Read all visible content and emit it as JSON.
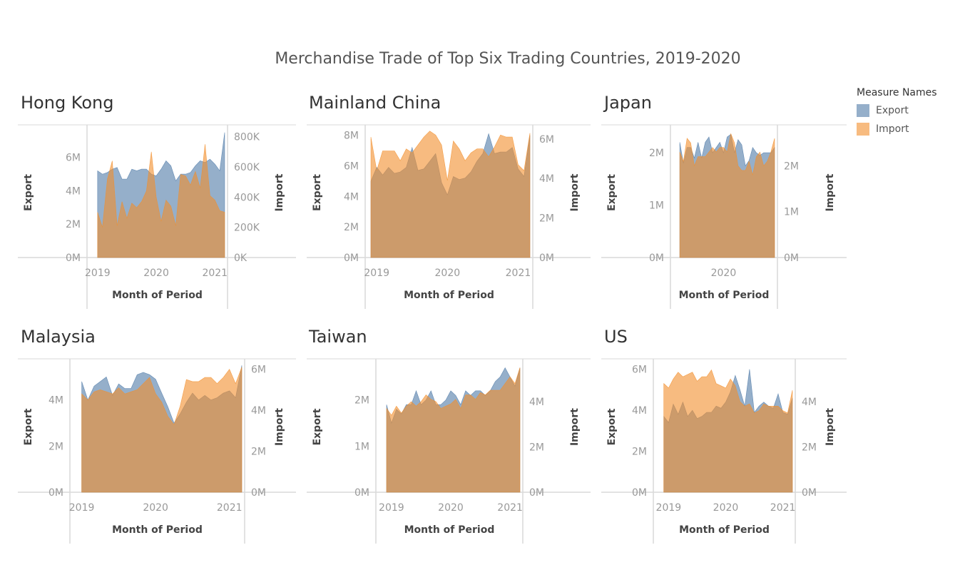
{
  "title": "Merchandise Trade of Top Six Trading Countries, 2019-2020",
  "legend": {
    "title": "Measure Names",
    "items": [
      {
        "label": "Export",
        "color": "#4e79a7"
      },
      {
        "label": "Import",
        "color": "#f28e2b"
      }
    ]
  },
  "colors": {
    "export": "#4e79a7",
    "import": "#f28e2b",
    "overlap": "#c49a6c"
  },
  "chart_data": [
    {
      "type": "area",
      "title": "Hong Kong",
      "xlabel": "Month of Period",
      "ylabel": "Export",
      "ylabel_right": "Import",
      "xlim": [
        2018.917,
        2021.167
      ],
      "ylim": [
        0,
        7700000
      ],
      "ylim_right": [
        0,
        850000
      ],
      "x_ticks": [
        {
          "v": 2019,
          "label": "2019"
        },
        {
          "v": 2020,
          "label": "2020"
        },
        {
          "v": 2021,
          "label": "2021"
        }
      ],
      "y_ticks": [
        {
          "v": 0,
          "label": "0M"
        },
        {
          "v": 2000000,
          "label": "2M"
        },
        {
          "v": 4000000,
          "label": "4M"
        },
        {
          "v": 6000000,
          "label": "6M"
        }
      ],
      "y_ticks_right": [
        {
          "v": 0,
          "label": "0K"
        },
        {
          "v": 200000,
          "label": "200K"
        },
        {
          "v": 400000,
          "label": "400K"
        },
        {
          "v": 600000,
          "label": "600K"
        },
        {
          "v": 800000,
          "label": "800K"
        }
      ],
      "x": [
        2019.0,
        2019.083,
        2019.167,
        2019.25,
        2019.333,
        2019.417,
        2019.5,
        2019.583,
        2019.667,
        2019.75,
        2019.833,
        2019.917,
        2020.0,
        2020.083,
        2020.167,
        2020.25,
        2020.333,
        2020.417,
        2020.5,
        2020.583,
        2020.667,
        2020.75,
        2020.833,
        2020.917,
        2021.0,
        2021.083,
        2021.167
      ],
      "series": [
        {
          "name": "Export",
          "values": [
            5200000,
            5000000,
            5100000,
            5300000,
            5400000,
            4700000,
            4700000,
            5300000,
            5200000,
            5300000,
            5300000,
            5000000,
            4900000,
            5300000,
            5800000,
            5500000,
            4600000,
            5000000,
            5000000,
            5100000,
            5500000,
            5800000,
            5700000,
            5900000,
            5600000,
            5200000,
            7500000
          ]
        },
        {
          "name": "Import",
          "values": [
            300000,
            200000,
            520000,
            640000,
            210000,
            370000,
            260000,
            360000,
            330000,
            370000,
            440000,
            700000,
            400000,
            240000,
            380000,
            340000,
            210000,
            550000,
            540000,
            480000,
            570000,
            460000,
            750000,
            410000,
            380000,
            310000,
            300000
          ]
        }
      ]
    },
    {
      "type": "area",
      "title": "Mainland China",
      "xlabel": "Month of Period",
      "ylabel": "Export",
      "ylabel_right": "Import",
      "xlim": [
        2018.917,
        2021.167
      ],
      "ylim": [
        0,
        8400000
      ],
      "ylim_right": [
        0,
        6500000
      ],
      "x_ticks": [
        {
          "v": 2019,
          "label": "2019"
        },
        {
          "v": 2020,
          "label": "2020"
        },
        {
          "v": 2021,
          "label": "2021"
        }
      ],
      "y_ticks": [
        {
          "v": 0,
          "label": "0M"
        },
        {
          "v": 2000000,
          "label": "2M"
        },
        {
          "v": 4000000,
          "label": "4M"
        },
        {
          "v": 6000000,
          "label": "6M"
        },
        {
          "v": 8000000,
          "label": "8M"
        }
      ],
      "y_ticks_right": [
        {
          "v": 0,
          "label": "0M"
        },
        {
          "v": 2000000,
          "label": "2M"
        },
        {
          "v": 4000000,
          "label": "4M"
        },
        {
          "v": 6000000,
          "label": "6M"
        }
      ],
      "x": [
        2018.917,
        2019.0,
        2019.083,
        2019.167,
        2019.25,
        2019.333,
        2019.417,
        2019.5,
        2019.583,
        2019.667,
        2019.75,
        2019.833,
        2019.917,
        2020.0,
        2020.083,
        2020.167,
        2020.25,
        2020.333,
        2020.417,
        2020.5,
        2020.583,
        2020.667,
        2020.75,
        2020.833,
        2020.917,
        2021.0,
        2021.083,
        2021.167
      ],
      "series": [
        {
          "name": "Export",
          "values": [
            5000000,
            5900000,
            5400000,
            5900000,
            5500000,
            5600000,
            5900000,
            7200000,
            5700000,
            5800000,
            6300000,
            6800000,
            4900000,
            4100000,
            5300000,
            5100000,
            5200000,
            5600000,
            6300000,
            6800000,
            8100000,
            6800000,
            6900000,
            6900000,
            7200000,
            5800000,
            5300000,
            8000000
          ]
        },
        {
          "name": "Import",
          "values": [
            6100000,
            4400000,
            5400000,
            5400000,
            5400000,
            4900000,
            5500000,
            5300000,
            5700000,
            6100000,
            6400000,
            6200000,
            5700000,
            3900000,
            5900000,
            5500000,
            4900000,
            5300000,
            5500000,
            5500000,
            5100000,
            5600000,
            6200000,
            6100000,
            6100000,
            4700000,
            4400000,
            6300000
          ]
        }
      ]
    },
    {
      "type": "area",
      "title": "Japan",
      "xlabel": "Month of Period",
      "ylabel": "Export",
      "ylabel_right": "Import",
      "xlim": [
        2018.917,
        2021.167
      ],
      "ylim": [
        0,
        2450000
      ],
      "ylim_right": [
        0,
        2800000
      ],
      "x_ticks": [
        {
          "v": 2020,
          "label": "2020"
        }
      ],
      "y_ticks": [
        {
          "v": 0,
          "label": "0M"
        },
        {
          "v": 1000000,
          "label": "1M"
        },
        {
          "v": 2000000,
          "label": "2M"
        }
      ],
      "y_ticks_right": [
        {
          "v": 0,
          "label": "0M"
        },
        {
          "v": 1000000,
          "label": "1M"
        },
        {
          "v": 2000000,
          "label": "2M"
        }
      ],
      "x": [
        2019.0,
        2019.083,
        2019.167,
        2019.25,
        2019.333,
        2019.417,
        2019.5,
        2019.583,
        2019.667,
        2019.75,
        2019.833,
        2019.917,
        2020.0,
        2020.083,
        2020.167,
        2020.25,
        2020.333,
        2020.417,
        2020.5,
        2020.583,
        2020.667,
        2020.75,
        2020.833,
        2020.917,
        2021.0,
        2021.083,
        2021.167
      ],
      "series": [
        {
          "name": "Export",
          "values": [
            2200000,
            1800000,
            2100000,
            2100000,
            1900000,
            2200000,
            1900000,
            2200000,
            2300000,
            2000000,
            2100000,
            2200000,
            2000000,
            2300000,
            2350000,
            2000000,
            2250000,
            2150000,
            1750000,
            1850000,
            2100000,
            2000000,
            1950000,
            2000000,
            2000000,
            2000000,
            2100000
          ]
        },
        {
          "name": "Import",
          "values": [
            2300000,
            2100000,
            2600000,
            2500000,
            2000000,
            2200000,
            2200000,
            2200000,
            2300000,
            2400000,
            2300000,
            2400000,
            2400000,
            2300000,
            2700000,
            2500000,
            2000000,
            1900000,
            1900000,
            2100000,
            1800000,
            2200000,
            2300000,
            2000000,
            2100000,
            2300000,
            2600000
          ]
        }
      ]
    },
    {
      "type": "area",
      "title": "Malaysia",
      "xlabel": "Month of Period",
      "ylabel": "Export",
      "ylabel_right": "Import",
      "xlim": [
        2018.917,
        2021.167
      ],
      "ylim": [
        0,
        5600000
      ],
      "ylim_right": [
        0,
        6300000
      ],
      "x_ticks": [
        {
          "v": 2019,
          "label": "2019"
        },
        {
          "v": 2020,
          "label": "2020"
        },
        {
          "v": 2021,
          "label": "2021"
        }
      ],
      "y_ticks": [
        {
          "v": 0,
          "label": "0M"
        },
        {
          "v": 2000000,
          "label": "2M"
        },
        {
          "v": 4000000,
          "label": "4M"
        }
      ],
      "y_ticks_right": [
        {
          "v": 0,
          "label": "0M"
        },
        {
          "v": 2000000,
          "label": "2M"
        },
        {
          "v": 4000000,
          "label": "4M"
        },
        {
          "v": 6000000,
          "label": "6M"
        }
      ],
      "x": [
        2019.0,
        2019.083,
        2019.167,
        2019.25,
        2019.333,
        2019.417,
        2019.5,
        2019.583,
        2019.667,
        2019.75,
        2019.833,
        2019.917,
        2020.0,
        2020.083,
        2020.167,
        2020.25,
        2020.333,
        2020.417,
        2020.5,
        2020.583,
        2020.667,
        2020.75,
        2020.833,
        2020.917,
        2021.0,
        2021.083,
        2021.167
      ],
      "series": [
        {
          "name": "Export",
          "values": [
            4800000,
            4000000,
            4600000,
            4800000,
            5000000,
            4200000,
            4700000,
            4500000,
            4500000,
            5100000,
            5200000,
            5100000,
            4900000,
            4300000,
            3700000,
            3000000,
            3400000,
            3900000,
            4300000,
            4000000,
            4200000,
            4000000,
            4100000,
            4300000,
            4400000,
            4100000,
            5500000
          ]
        },
        {
          "name": "Import",
          "values": [
            4800000,
            4500000,
            4900000,
            5000000,
            4900000,
            4800000,
            5100000,
            4800000,
            4900000,
            5000000,
            5300000,
            5600000,
            4800000,
            4400000,
            3700000,
            3300000,
            4200000,
            5500000,
            5400000,
            5400000,
            5600000,
            5600000,
            5300000,
            5600000,
            6000000,
            5300000,
            6100000
          ]
        }
      ]
    },
    {
      "type": "area",
      "title": "Taiwan",
      "xlabel": "Month of Period",
      "ylabel": "Export",
      "ylabel_right": "Import",
      "xlim": [
        2018.833,
        2021.167
      ],
      "ylim": [
        0,
        2800000
      ],
      "ylim_right": [
        0,
        5700000
      ],
      "x_ticks": [
        {
          "v": 2019,
          "label": "2019"
        },
        {
          "v": 2020,
          "label": "2020"
        },
        {
          "v": 2021,
          "label": "2021"
        }
      ],
      "y_ticks": [
        {
          "v": 0,
          "label": "0M"
        },
        {
          "v": 1000000,
          "label": "1M"
        },
        {
          "v": 2000000,
          "label": "2M"
        }
      ],
      "y_ticks_right": [
        {
          "v": 0,
          "label": "0M"
        },
        {
          "v": 2000000,
          "label": "2M"
        },
        {
          "v": 4000000,
          "label": "4M"
        }
      ],
      "x": [
        2018.917,
        2019.0,
        2019.083,
        2019.167,
        2019.25,
        2019.333,
        2019.417,
        2019.5,
        2019.583,
        2019.667,
        2019.75,
        2019.833,
        2019.917,
        2020.0,
        2020.083,
        2020.167,
        2020.25,
        2020.333,
        2020.417,
        2020.5,
        2020.583,
        2020.667,
        2020.75,
        2020.833,
        2020.917,
        2021.0,
        2021.083,
        2021.167
      ],
      "series": [
        {
          "name": "Export",
          "values": [
            1900000,
            1500000,
            1800000,
            1700000,
            1900000,
            1900000,
            2200000,
            1900000,
            2000000,
            2200000,
            1900000,
            1900000,
            2000000,
            2200000,
            2100000,
            1900000,
            2200000,
            2100000,
            2200000,
            2200000,
            2100000,
            2200000,
            2400000,
            2500000,
            2700000,
            2500000,
            2300000,
            2700000
          ]
        },
        {
          "name": "Import",
          "values": [
            3700000,
            3400000,
            3800000,
            3500000,
            3800000,
            4000000,
            3800000,
            4000000,
            4300000,
            4100000,
            4000000,
            3700000,
            3800000,
            3900000,
            4100000,
            3700000,
            4300000,
            4300000,
            4100000,
            4400000,
            4300000,
            4500000,
            4500000,
            4500000,
            4800000,
            5100000,
            4800000,
            5500000
          ]
        }
      ]
    },
    {
      "type": "area",
      "title": "US",
      "xlabel": "Month of Period",
      "ylabel": "Export",
      "ylabel_right": "Import",
      "xlim": [
        2018.833,
        2021.167
      ],
      "ylim": [
        0,
        6300000
      ],
      "ylim_right": [
        0,
        5700000
      ],
      "x_ticks": [
        {
          "v": 2019,
          "label": "2019"
        },
        {
          "v": 2020,
          "label": "2020"
        },
        {
          "v": 2021,
          "label": "2021"
        }
      ],
      "y_ticks": [
        {
          "v": 0,
          "label": "0M"
        },
        {
          "v": 2000000,
          "label": "2M"
        },
        {
          "v": 4000000,
          "label": "4M"
        },
        {
          "v": 6000000,
          "label": "6M"
        }
      ],
      "y_ticks_right": [
        {
          "v": 0,
          "label": "0M"
        },
        {
          "v": 2000000,
          "label": "2M"
        },
        {
          "v": 4000000,
          "label": "4M"
        }
      ],
      "x": [
        2018.917,
        2019.0,
        2019.083,
        2019.167,
        2019.25,
        2019.333,
        2019.417,
        2019.5,
        2019.583,
        2019.667,
        2019.75,
        2019.833,
        2019.917,
        2020.0,
        2020.083,
        2020.167,
        2020.25,
        2020.333,
        2020.417,
        2020.5,
        2020.583,
        2020.667,
        2020.75,
        2020.833,
        2020.917,
        2021.0,
        2021.083,
        2021.167
      ],
      "series": [
        {
          "name": "Export",
          "values": [
            3700000,
            3400000,
            4300000,
            3800000,
            4400000,
            3700000,
            4000000,
            3600000,
            3700000,
            3900000,
            3900000,
            4200000,
            4100000,
            4400000,
            4900000,
            5700000,
            5000000,
            4200000,
            6000000,
            3900000,
            4200000,
            4400000,
            4200000,
            4100000,
            4800000,
            3900000,
            3800000,
            4600000
          ]
        },
        {
          "name": "Import",
          "values": [
            4800000,
            4600000,
            5000000,
            5300000,
            5100000,
            5200000,
            5300000,
            4900000,
            5100000,
            5100000,
            5400000,
            4800000,
            4700000,
            4600000,
            5000000,
            4700000,
            4000000,
            3800000,
            3900000,
            3500000,
            3600000,
            3900000,
            3800000,
            3800000,
            3800000,
            3600000,
            3500000,
            4500000
          ]
        }
      ]
    }
  ]
}
